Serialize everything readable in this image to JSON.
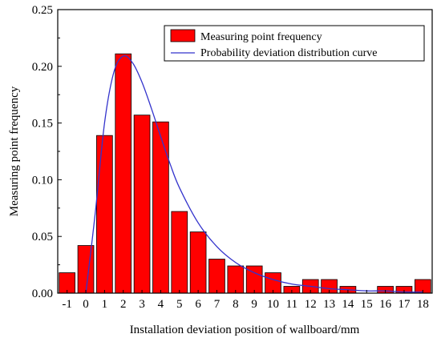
{
  "chart_data": {
    "type": "bar",
    "xlabel": "Installation deviation position of wallboard/mm",
    "ylabel": "Measuring point frequency",
    "ylim": [
      0,
      0.25
    ],
    "yticks": [
      "0.00",
      "0.05",
      "0.10",
      "0.15",
      "0.20",
      "0.25"
    ],
    "categories": [
      "-1",
      "0",
      "1",
      "2",
      "3",
      "4",
      "5",
      "6",
      "7",
      "8",
      "9",
      "10",
      "11",
      "12",
      "13",
      "14",
      "15",
      "16",
      "17",
      "18"
    ],
    "series": [
      {
        "name": "Measuring point frequency",
        "kind": "bar",
        "color": "#ff0000",
        "values": [
          0.018,
          0.042,
          0.139,
          0.211,
          0.157,
          0.151,
          0.072,
          0.054,
          0.03,
          0.024,
          0.024,
          0.018,
          0.006,
          0.012,
          0.012,
          0.006,
          0.0,
          0.006,
          0.006,
          0.012
        ]
      },
      {
        "name": "Probability deviation distribution curve",
        "kind": "line",
        "color": "#3333cc",
        "x": [
          0,
          0.5,
          1,
          1.5,
          2,
          2.5,
          3,
          3.5,
          4,
          4.5,
          5,
          6,
          7,
          8,
          9,
          10,
          11,
          12,
          13,
          14,
          15,
          16,
          17,
          18
        ],
        "values": [
          0.0,
          0.07,
          0.15,
          0.195,
          0.209,
          0.203,
          0.186,
          0.163,
          0.138,
          0.114,
          0.093,
          0.062,
          0.041,
          0.027,
          0.018,
          0.012,
          0.008,
          0.006,
          0.004,
          0.003,
          0.002,
          0.002,
          0.001,
          0.001
        ]
      }
    ],
    "grid": false,
    "legend_position": "top-right"
  }
}
